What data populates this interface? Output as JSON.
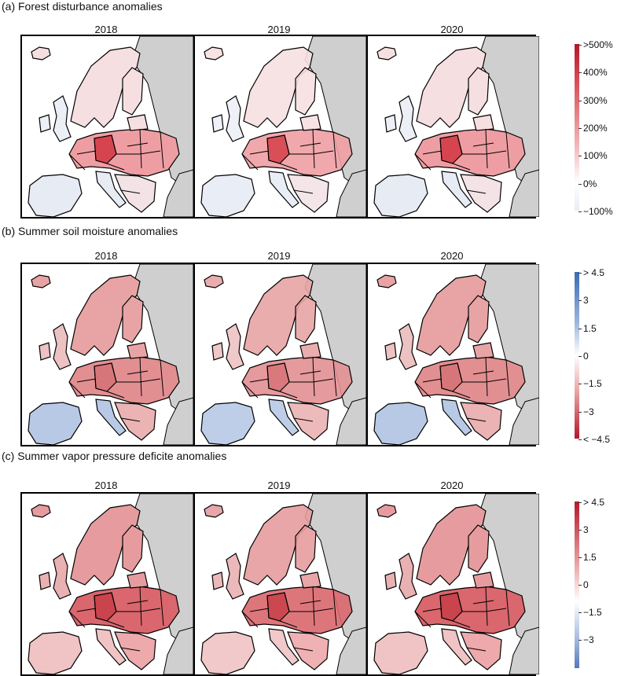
{
  "panels": [
    {
      "id": "a",
      "title": "(a) Forest disturbance anomalies",
      "years": [
        "2018",
        "2019",
        "2020"
      ],
      "colorbar": {
        "colors": [
          "#e8ecf5",
          "#ffffff",
          "#f4c7c8",
          "#e88a8e",
          "#d64e56",
          "#b2182b"
        ],
        "stops": [
          0,
          0.17,
          0.34,
          0.55,
          0.78,
          1
        ],
        "ticks": [
          ">500%",
          "400%",
          "300%",
          "200%",
          "100%",
          "0%",
          "−100%"
        ]
      },
      "anomaly": {
        "north": "#f6dfe1",
        "central": "#ee9ea3",
        "hot": "#d6454f",
        "west": "#eceff6",
        "south": "#e7ebf4",
        "east": "#f3e3e6"
      }
    },
    {
      "id": "b",
      "title": "(b) Summer soil moisture anomalies",
      "years": [
        "2018",
        "2019",
        "2020"
      ],
      "colorbar": {
        "colors": [
          "#3b6bb3",
          "#9bb5dc",
          "#ffffff",
          "#e9a3a4",
          "#b2182b"
        ],
        "stops": [
          0,
          0.3,
          0.5,
          0.72,
          1
        ],
        "ticks": [
          "> 4.5",
          "3",
          "1.5",
          "0",
          "−1.5",
          "−3",
          "< −4.5"
        ]
      },
      "anomaly": {
        "north": "#e8a4a5",
        "central": "#e28f92",
        "hot": "#d7767a",
        "west": "#edc2c3",
        "south": "#b8c9e6",
        "east": "#ebb3b4"
      }
    },
    {
      "id": "c",
      "title": "(c) Summer vapor pressure deficite anomalies",
      "years": [
        "2018",
        "2019",
        "2020"
      ],
      "colorbar": {
        "colors": [
          "#b2182b",
          "#e79a9c",
          "#ffffff",
          "#a9bde0",
          "#5479b9"
        ],
        "stops": [
          0,
          0.35,
          0.6,
          0.82,
          1
        ],
        "ticks": [
          "> 4.5",
          "3",
          "1.5",
          "0",
          "−1.5",
          "−3"
        ]
      },
      "anomaly": {
        "north": "#e69c9e",
        "central": "#d9676d",
        "hot": "#c9444c",
        "west": "#eab1b2",
        "south": "#f0c3c4",
        "east": "#eda9ab"
      }
    }
  ],
  "land_outside": "#cfcfcf",
  "water": "#ffffff"
}
